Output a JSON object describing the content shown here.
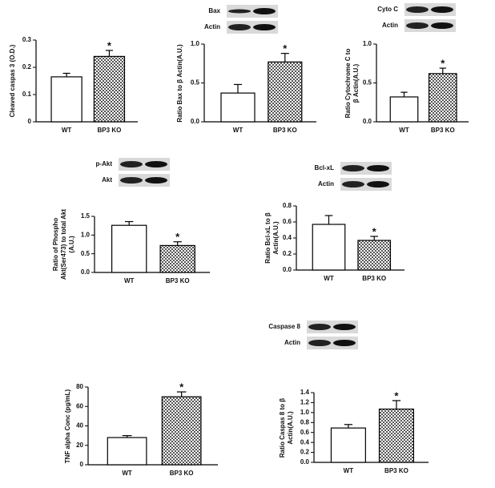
{
  "chart_data": [
    {
      "type": "bar",
      "ylabel": "Cleaved caspas 3 (O.D.)",
      "categories": [
        "WT",
        "BP3 KO"
      ],
      "values": [
        0.165,
        0.24
      ],
      "errors": [
        0.013,
        0.022
      ],
      "colors": [
        "#ffffff",
        "#555555"
      ],
      "annotation": "*",
      "ylim": [
        0,
        0.3
      ],
      "yticks": [
        0,
        0.1,
        0.2,
        0.3
      ]
    },
    {
      "type": "bar",
      "ylabel": "Ratio Bax to β Actin(A.U.)",
      "blot_labels": [
        "Bax",
        "Actin"
      ],
      "categories": [
        "WT",
        "BP3 KO"
      ],
      "values": [
        0.37,
        0.77
      ],
      "errors": [
        0.11,
        0.11
      ],
      "colors": [
        "#ffffff",
        "#555555"
      ],
      "annotation": "*",
      "ylim": [
        0,
        1.0
      ],
      "yticks": [
        {
          "value": 0,
          "label": "0.0"
        },
        0.5,
        {
          "value": 1,
          "label": "1.0"
        }
      ]
    },
    {
      "type": "bar",
      "ylabel": "Ratio Cytochrome C to β Actin(A.U.)",
      "blot_labels": [
        "Cyto C",
        "Actin"
      ],
      "categories": [
        "WT",
        "BP3 KO"
      ],
      "values": [
        0.32,
        0.62
      ],
      "errors": [
        0.06,
        0.07
      ],
      "colors": [
        "#ffffff",
        "#555555"
      ],
      "annotation": "*",
      "ylim": [
        0,
        1.0
      ],
      "yticks": [
        {
          "value": 0,
          "label": "0.0"
        },
        0.5,
        {
          "value": 1,
          "label": "1.0"
        }
      ]
    },
    {
      "type": "bar",
      "ylabel": "Ratio of Phospho Akt(Ser473) to total Akt (A.U.)",
      "blot_labels": [
        "p-Akt",
        "Akt"
      ],
      "categories": [
        "WT",
        "BP3 KO"
      ],
      "values": [
        1.26,
        0.72
      ],
      "errors": [
        0.1,
        0.1
      ],
      "colors": [
        "#ffffff",
        "#555555"
      ],
      "annotation": "*",
      "ylim": [
        0,
        1.5
      ],
      "yticks": [
        {
          "value": 0,
          "label": "0.0"
        },
        0.5,
        {
          "value": 1,
          "label": "1.0"
        },
        1.5
      ]
    },
    {
      "type": "bar",
      "ylabel": "Ratio Bcl-xL to β Actin(A.U.)",
      "blot_labels": [
        "Bcl-xL",
        "Actin"
      ],
      "categories": [
        "WT",
        "BP3 KO"
      ],
      "values": [
        0.57,
        0.37
      ],
      "errors": [
        0.11,
        0.05
      ],
      "colors": [
        "#ffffff",
        "#555555"
      ],
      "annotation": "*",
      "ylim": [
        0,
        0.8
      ],
      "yticks": [
        {
          "value": 0,
          "label": "0.0"
        },
        0.2,
        0.4,
        0.6,
        0.8
      ]
    },
    {
      "type": "bar",
      "ylabel": "TNF alpha Conc (pg/mL)",
      "categories": [
        "WT",
        "BP3 KO"
      ],
      "values": [
        28,
        70
      ],
      "errors": [
        2,
        5
      ],
      "colors": [
        "#ffffff",
        "#555555"
      ],
      "annotation": "*",
      "ylim": [
        0,
        80
      ],
      "yticks": [
        0,
        20,
        40,
        60,
        80
      ]
    },
    {
      "type": "bar",
      "ylabel": "Ratio Caspas 8 to β Actin(A.U.)",
      "blot_labels": [
        "Caspase 8",
        "Actin"
      ],
      "categories": [
        "WT",
        "BP3 KO"
      ],
      "values": [
        0.69,
        1.07
      ],
      "errors": [
        0.07,
        0.17
      ],
      "colors": [
        "#ffffff",
        "#555555"
      ],
      "annotation": "*",
      "ylim": [
        0,
        1.4
      ],
      "yticks": [
        {
          "value": 0,
          "label": "0.0"
        },
        0.2,
        0.4,
        0.6,
        0.8,
        {
          "value": 1,
          "label": "1.0"
        },
        1.2,
        1.4
      ]
    }
  ]
}
